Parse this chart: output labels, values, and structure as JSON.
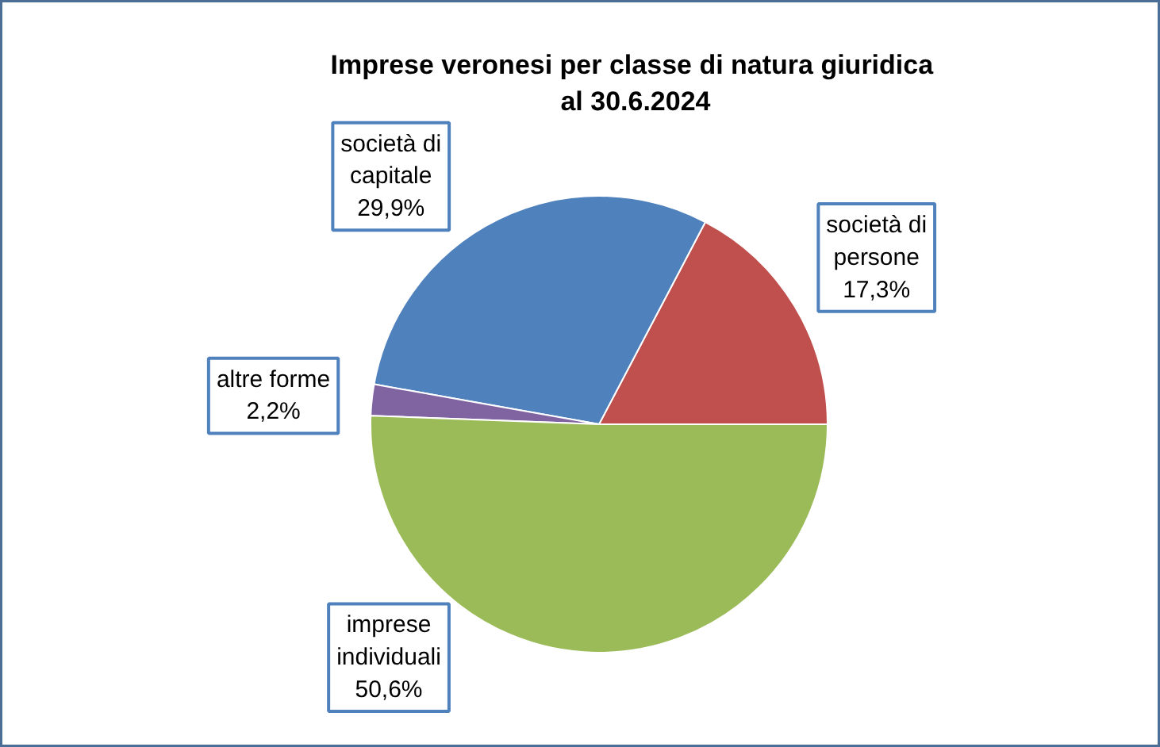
{
  "chart_data": {
    "type": "pie",
    "title": "Imprese veronesi  per classe di natura giuridica\nal 30.6.2024",
    "categories": [
      "società di persone",
      "società di capitale",
      "altre forme",
      "imprese individuali"
    ],
    "values": [
      17.3,
      29.9,
      2.2,
      50.6
    ],
    "colors": [
      "#c0504d",
      "#4f81bd",
      "#8064a2",
      "#9bbb59"
    ],
    "value_labels": [
      "17,3%",
      "29,9%",
      "2,2%",
      "50,6%"
    ]
  }
}
